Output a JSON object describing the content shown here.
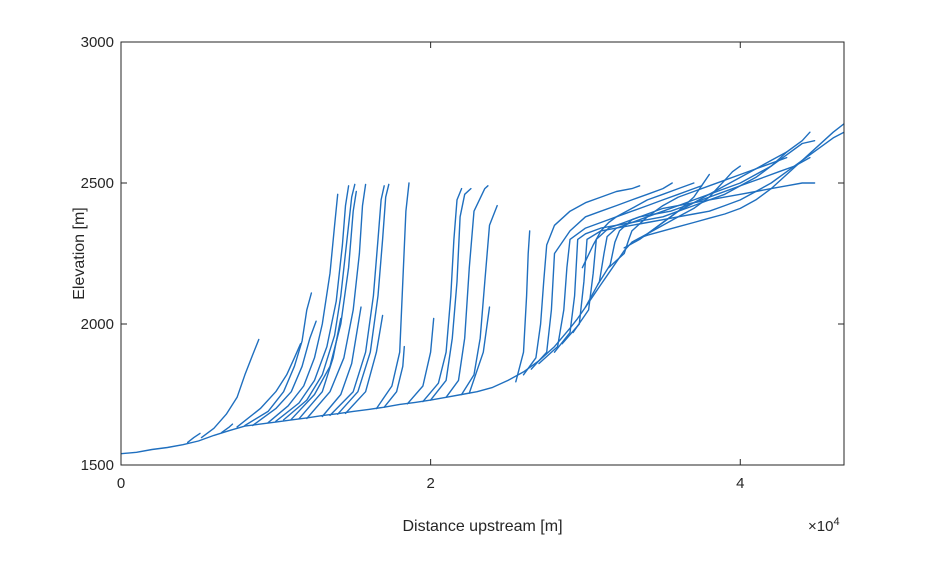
{
  "chart_data": {
    "type": "line",
    "title": "",
    "xlabel": "Distance upstream [m]",
    "ylabel": "Elevation [m]",
    "x_exponent_label": "×10",
    "x_exponent": "4",
    "xlim": [
      0,
      46700
    ],
    "ylim": [
      1500,
      3000
    ],
    "xticks": [
      0,
      20000,
      40000
    ],
    "xtick_labels": [
      "0",
      "2",
      "4"
    ],
    "yticks": [
      1500,
      2000,
      2500,
      3000
    ],
    "ytick_labels": [
      "1500",
      "2000",
      "2500",
      "3000"
    ],
    "grid": false,
    "legend": "none",
    "color": "#1f6fbf",
    "series": [
      {
        "x": [
          0,
          1000,
          2000,
          3000,
          4000,
          5000,
          6000,
          7000,
          8000,
          9000,
          10000,
          11000,
          12000,
          13000,
          14000,
          15000,
          16000,
          17000,
          18000,
          19000,
          20000,
          21000,
          22000,
          23000,
          24000,
          25000,
          26000,
          27000,
          28000,
          29000,
          29500,
          30000,
          30500,
          31000,
          31500,
          32000,
          32500,
          33000,
          33500,
          34000,
          35000,
          36000,
          37000,
          38000,
          39000,
          40000,
          41000,
          42000,
          43000,
          44000,
          45000,
          46000,
          46700
        ],
        "y": [
          1540,
          1545,
          1555,
          1562,
          1572,
          1585,
          1605,
          1622,
          1638,
          1645,
          1652,
          1660,
          1667,
          1675,
          1682,
          1690,
          1697,
          1705,
          1715,
          1722,
          1730,
          1740,
          1750,
          1760,
          1775,
          1800,
          1830,
          1870,
          1920,
          1985,
          2020,
          2060,
          2100,
          2140,
          2180,
          2220,
          2260,
          2290,
          2305,
          2315,
          2330,
          2345,
          2360,
          2375,
          2390,
          2410,
          2440,
          2480,
          2530,
          2580,
          2630,
          2680,
          2710
        ]
      },
      {
        "x": [
          4300,
          4700,
          5100
        ],
        "y": [
          1580,
          1597,
          1612
        ]
      },
      {
        "x": [
          5200,
          6000,
          6800,
          7500,
          8000,
          8500,
          8900
        ],
        "y": [
          1597,
          1630,
          1680,
          1740,
          1820,
          1890,
          1945
        ]
      },
      {
        "x": [
          6500,
          7000,
          7200
        ],
        "y": [
          1615,
          1635,
          1645
        ]
      },
      {
        "x": [
          7500,
          9000,
          10000,
          10700,
          11200,
          11600
        ],
        "y": [
          1635,
          1700,
          1760,
          1820,
          1880,
          1930
        ]
      },
      {
        "x": [
          8000,
          9500,
          10500,
          11200,
          11700,
          12000,
          12300
        ],
        "y": [
          1640,
          1690,
          1760,
          1850,
          1940,
          2050,
          2110
        ]
      },
      {
        "x": [
          8500,
          10000,
          11000,
          11700,
          12200,
          12600
        ],
        "y": [
          1640,
          1700,
          1760,
          1850,
          1950,
          2010
        ]
      },
      {
        "x": [
          9500,
          10800,
          11800,
          12500,
          13000,
          13500,
          13800,
          14000
        ],
        "y": [
          1650,
          1710,
          1780,
          1880,
          2000,
          2180,
          2350,
          2460
        ]
      },
      {
        "x": [
          10000,
          11500,
          12500,
          13300,
          13900,
          14300,
          14500,
          14700
        ],
        "y": [
          1655,
          1720,
          1800,
          1920,
          2080,
          2280,
          2420,
          2490
        ]
      },
      {
        "x": [
          10500,
          12000,
          13000,
          13800,
          14200,
          14600,
          14900,
          15100
        ],
        "y": [
          1660,
          1730,
          1820,
          1960,
          2100,
          2300,
          2450,
          2495
        ]
      },
      {
        "x": [
          11000,
          12500,
          13500,
          14200,
          14700,
          15000,
          15200
        ],
        "y": [
          1662,
          1750,
          1850,
          2000,
          2200,
          2400,
          2470
        ]
      },
      {
        "x": [
          11500,
          13000,
          13700,
          14200
        ],
        "y": [
          1664,
          1760,
          1880,
          2020
        ]
      },
      {
        "x": [
          12000,
          13500,
          14400,
          15000,
          15400,
          15600,
          15800
        ],
        "y": [
          1665,
          1760,
          1880,
          2050,
          2250,
          2420,
          2495
        ]
      },
      {
        "x": [
          13000,
          14200,
          14900,
          15500
        ],
        "y": [
          1672,
          1750,
          1860,
          2060
        ]
      },
      {
        "x": [
          13500,
          15000,
          15800,
          16300,
          16600,
          16800,
          17000
        ],
        "y": [
          1676,
          1760,
          1900,
          2100,
          2300,
          2440,
          2490
        ]
      },
      {
        "x": [
          14000,
          15300,
          16100,
          16600,
          16900,
          17100,
          17300
        ],
        "y": [
          1680,
          1760,
          1900,
          2100,
          2300,
          2450,
          2495
        ]
      },
      {
        "x": [
          14500,
          15800,
          16500,
          16900
        ],
        "y": [
          1683,
          1760,
          1900,
          2030
        ]
      },
      {
        "x": [
          16500,
          17500,
          18000,
          18200,
          18400,
          18600
        ],
        "y": [
          1700,
          1780,
          1900,
          2150,
          2400,
          2500
        ]
      },
      {
        "x": [
          17000,
          17800,
          18200,
          18300
        ],
        "y": [
          1705,
          1760,
          1850,
          1920
        ]
      },
      {
        "x": [
          18500,
          19500,
          20000,
          20200
        ],
        "y": [
          1717,
          1780,
          1900,
          2020
        ]
      },
      {
        "x": [
          19500,
          20500,
          21000,
          21300,
          21500,
          21700,
          22000
        ],
        "y": [
          1725,
          1790,
          1900,
          2100,
          2300,
          2440,
          2480
        ]
      },
      {
        "x": [
          20000,
          21000,
          21400,
          21700,
          21900,
          22200,
          22600
        ],
        "y": [
          1730,
          1800,
          1950,
          2150,
          2380,
          2460,
          2480
        ]
      },
      {
        "x": [
          21000,
          21800,
          22200,
          22500,
          22800,
          23500,
          23700
        ],
        "y": [
          1740,
          1800,
          1950,
          2200,
          2400,
          2480,
          2490
        ]
      },
      {
        "x": [
          22000,
          22800,
          23200,
          23500,
          23800,
          24300
        ],
        "y": [
          1750,
          1820,
          1950,
          2150,
          2350,
          2420
        ]
      },
      {
        "x": [
          22500,
          23400,
          23800
        ],
        "y": [
          1755,
          1900,
          2060
        ]
      },
      {
        "x": [
          25500,
          26000,
          26200,
          26300,
          26400
        ],
        "y": [
          1795,
          1900,
          2100,
          2250,
          2330
        ]
      },
      {
        "x": [
          26000,
          26800,
          27100,
          27300,
          27500,
          28000,
          29000,
          30000,
          31000,
          32000,
          33000,
          33500
        ],
        "y": [
          1820,
          1880,
          2000,
          2150,
          2280,
          2350,
          2400,
          2430,
          2450,
          2470,
          2480,
          2490
        ]
      },
      {
        "x": [
          26500,
          27500,
          27800,
          28000,
          29000,
          30000,
          31000,
          32000,
          33000,
          34000,
          35000,
          35600
        ],
        "y": [
          1840,
          1900,
          2050,
          2250,
          2330,
          2380,
          2400,
          2420,
          2440,
          2460,
          2480,
          2500
        ]
      },
      {
        "x": [
          27000,
          28200,
          28600,
          28800,
          29000,
          30000,
          31000,
          32000,
          33000,
          34000,
          35000,
          36000,
          37000,
          37500
        ],
        "y": [
          1860,
          1920,
          2050,
          2200,
          2300,
          2340,
          2360,
          2380,
          2400,
          2420,
          2440,
          2460,
          2480,
          2490
        ]
      },
      {
        "x": [
          28000,
          29000,
          29300,
          29500,
          30000,
          31000,
          32000,
          33000,
          34000,
          35000,
          36000,
          37000,
          38000,
          39000,
          40000,
          41000,
          42000,
          43000,
          44000,
          44500
        ],
        "y": [
          1900,
          1970,
          2100,
          2300,
          2320,
          2340,
          2350,
          2360,
          2370,
          2380,
          2400,
          2420,
          2440,
          2460,
          2490,
          2520,
          2560,
          2610,
          2650,
          2680
        ]
      },
      {
        "x": [
          28500,
          29600,
          29900,
          30100,
          31000,
          32000,
          33000,
          34000,
          35000,
          36000,
          37000,
          38000,
          39000,
          40000,
          41000,
          42000,
          43000,
          44000,
          45000,
          46000,
          46700
        ],
        "y": [
          1930,
          2000,
          2150,
          2300,
          2330,
          2340,
          2350,
          2360,
          2370,
          2380,
          2390,
          2400,
          2420,
          2440,
          2470,
          2500,
          2540,
          2580,
          2620,
          2660,
          2680
        ]
      },
      {
        "x": [
          29200,
          30200,
          30500,
          30700,
          31500,
          32500,
          33500,
          34500,
          35500,
          36500,
          37500,
          38500,
          39500,
          40500,
          41500,
          42500,
          43500,
          44500
        ],
        "y": [
          1970,
          2050,
          2180,
          2300,
          2340,
          2360,
          2380,
          2390,
          2400,
          2420,
          2440,
          2460,
          2480,
          2500,
          2520,
          2540,
          2560,
          2590
        ]
      },
      {
        "x": [
          30000,
          30900,
          31200,
          31400,
          32000,
          33000,
          34000,
          35000,
          36000,
          37000,
          38000,
          39000,
          40000,
          41000,
          42000,
          43000,
          44000,
          44800
        ],
        "y": [
          2060,
          2150,
          2250,
          2310,
          2340,
          2360,
          2380,
          2400,
          2420,
          2440,
          2460,
          2480,
          2500,
          2530,
          2560,
          2600,
          2640,
          2650
        ]
      },
      {
        "x": [
          30800,
          31600,
          31900,
          32200,
          33000,
          34000,
          35000,
          36000,
          37000,
          38000,
          39000,
          40000,
          41000,
          42000,
          43000,
          44000,
          44800
        ],
        "y": [
          2140,
          2210,
          2290,
          2330,
          2370,
          2390,
          2410,
          2420,
          2430,
          2440,
          2450,
          2460,
          2470,
          2480,
          2490,
          2500,
          2500
        ]
      },
      {
        "x": [
          31500,
          32500,
          32800,
          33000,
          34000,
          35000,
          36000,
          37000,
          38000,
          39000,
          40000,
          41000,
          42000,
          43000
        ],
        "y": [
          2200,
          2250,
          2300,
          2330,
          2380,
          2420,
          2450,
          2470,
          2490,
          2510,
          2530,
          2550,
          2570,
          2590
        ]
      },
      {
        "x": [
          32500,
          33500,
          34000,
          35000,
          36000,
          37000,
          38000,
          39000,
          40000,
          41000,
          42000,
          43000
        ],
        "y": [
          2270,
          2300,
          2320,
          2360,
          2400,
          2430,
          2460,
          2490,
          2520,
          2550,
          2580,
          2610
        ]
      },
      {
        "x": [
          33000,
          34000,
          35000,
          36000,
          37000,
          38000,
          38500,
          39000,
          39500,
          40000
        ],
        "y": [
          2290,
          2320,
          2350,
          2380,
          2410,
          2450,
          2480,
          2510,
          2540,
          2560
        ]
      },
      {
        "x": [
          34000,
          35000,
          36000,
          37000,
          37500,
          38000
        ],
        "y": [
          2320,
          2360,
          2400,
          2450,
          2490,
          2530
        ]
      },
      {
        "x": [
          29800,
          30500,
          31000,
          31500,
          32000,
          33000,
          34000,
          35000,
          36000,
          37000
        ],
        "y": [
          2200,
          2280,
          2330,
          2360,
          2380,
          2410,
          2440,
          2460,
          2480,
          2500
        ]
      }
    ]
  }
}
